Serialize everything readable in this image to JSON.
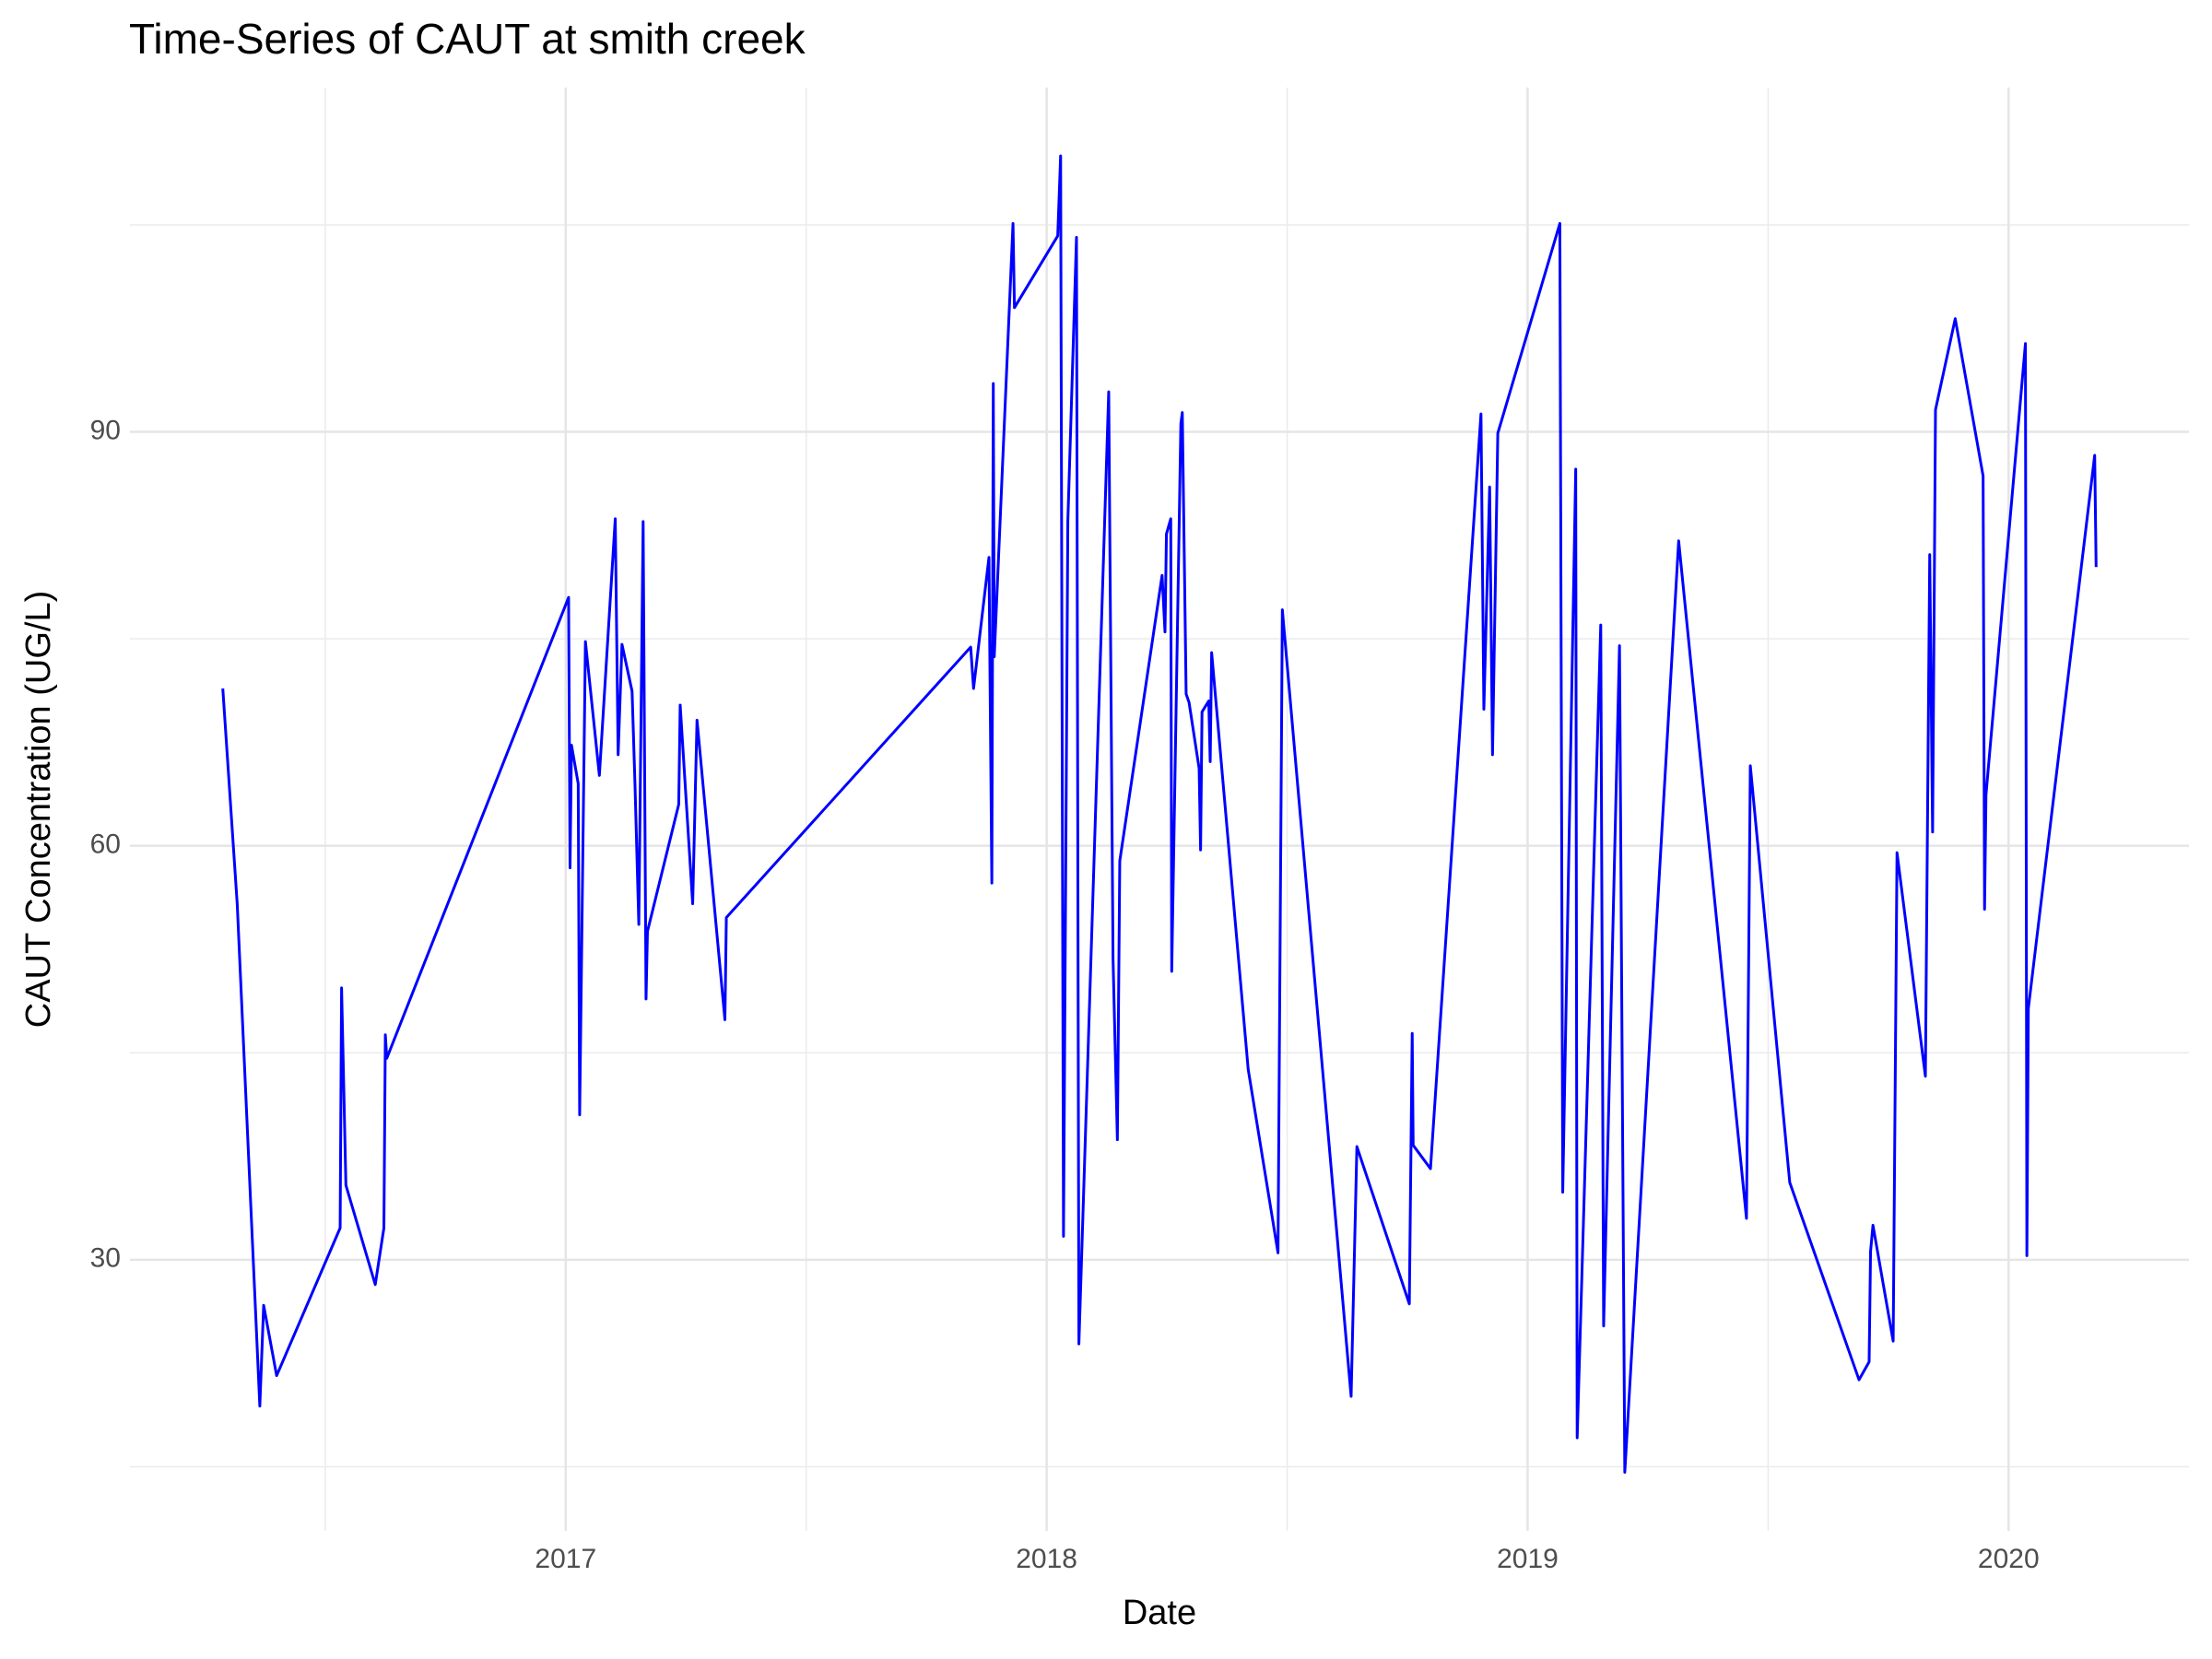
{
  "chart_data": {
    "type": "line",
    "title": "Time-Series of CAUT at smith creek",
    "x_label": "Date",
    "y_label": "CAUT Concentration (UG/L)",
    "color": "#0000ff",
    "grid": true,
    "xlim": [
      2016.094,
      2020.375
    ],
    "ylim": [
      10.35,
      114.95
    ],
    "xticks": [
      2017,
      2018,
      2019,
      2020
    ],
    "yticks": [
      30,
      60,
      90
    ],
    "x": [
      2016.287,
      2016.317,
      2016.364,
      2016.372,
      2016.399,
      2016.531,
      2016.534,
      2016.543,
      2016.604,
      2016.622,
      2016.625,
      2016.628,
      2017.006,
      2017.009,
      2017.012,
      2017.026,
      2017.029,
      2017.041,
      2017.07,
      2017.103,
      2017.109,
      2017.117,
      2017.138,
      2017.144,
      2017.152,
      2017.161,
      2017.167,
      2017.17,
      2017.235,
      2017.238,
      2017.264,
      2017.273,
      2017.331,
      2017.334,
      2017.842,
      2017.848,
      2017.88,
      2017.886,
      2017.889,
      2017.891,
      2017.93,
      2017.933,
      2018.023,
      2018.029,
      2018.035,
      2018.044,
      2018.062,
      2018.067,
      2018.129,
      2018.138,
      2018.147,
      2018.152,
      2018.24,
      2018.246,
      2018.249,
      2018.258,
      2018.26,
      2018.279,
      2018.282,
      2018.29,
      2018.296,
      2018.317,
      2018.32,
      2018.323,
      2018.337,
      2018.34,
      2018.343,
      2018.419,
      2018.481,
      2018.49,
      2018.633,
      2018.645,
      2018.754,
      2018.76,
      2018.762,
      2018.798,
      2018.903,
      2018.909,
      2018.921,
      2018.927,
      2018.938,
      2019.067,
      2019.073,
      2019.1,
      2019.103,
      2019.152,
      2019.158,
      2019.191,
      2019.202,
      2019.314,
      2019.455,
      2019.463,
      2019.545,
      2019.689,
      2019.71,
      2019.713,
      2019.718,
      2019.76,
      2019.768,
      2019.827,
      2019.836,
      2019.842,
      2019.848,
      2019.889,
      2019.947,
      2019.95,
      2019.953,
      2020.035,
      2020.038,
      2020.041,
      2020.179,
      2020.182
    ],
    "values": [
      71.4,
      55.8,
      19.4,
      26.7,
      21.6,
      32.3,
      49.7,
      35.4,
      28.2,
      32.3,
      46.3,
      44.6,
      78.0,
      58.4,
      67.3,
      64.5,
      40.5,
      74.8,
      65.1,
      83.7,
      66.6,
      74.6,
      71.2,
      64.5,
      54.3,
      83.5,
      48.9,
      53.8,
      63.0,
      70.2,
      55.8,
      69.1,
      47.4,
      54.8,
      74.4,
      71.4,
      80.9,
      57.3,
      93.5,
      73.7,
      105.1,
      99.0,
      104.2,
      110.0,
      31.7,
      83.5,
      104.1,
      23.9,
      92.9,
      51.8,
      38.7,
      58.9,
      79.6,
      75.5,
      82.6,
      83.7,
      50.9,
      90.6,
      91.4,
      71.0,
      70.4,
      65.6,
      59.7,
      69.7,
      70.5,
      66.1,
      74.0,
      43.8,
      30.5,
      77.1,
      20.1,
      38.2,
      26.8,
      46.4,
      38.3,
      36.6,
      91.3,
      69.9,
      86.0,
      66.6,
      89.9,
      105.1,
      34.9,
      87.3,
      17.1,
      76.0,
      25.2,
      74.5,
      14.6,
      82.1,
      33.0,
      65.8,
      35.6,
      21.3,
      22.6,
      30.6,
      32.5,
      24.1,
      59.5,
      43.3,
      81.1,
      61.0,
      91.6,
      98.2,
      86.8,
      55.4,
      63.7,
      96.4,
      30.3,
      48.2,
      88.3,
      80.2
    ]
  }
}
